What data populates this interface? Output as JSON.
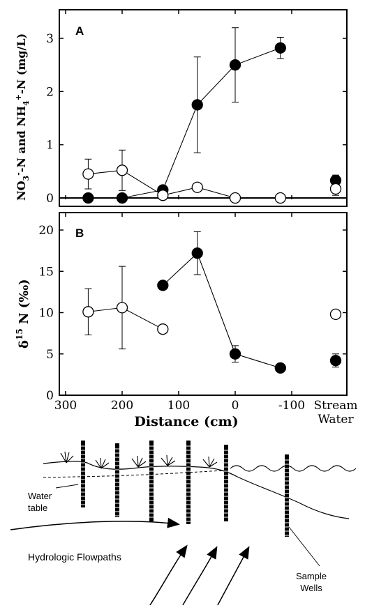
{
  "chart_data": [
    {
      "type": "scatter",
      "panel_label": "A",
      "ylabel_parts": {
        "a": "NO",
        "a_sub": "3",
        "a_sup": "-",
        "b": "-N and NH",
        "b_sub": "4",
        "b_sup": "+",
        "c": "-N (mg/L)"
      },
      "ylim": [
        0,
        3.4
      ],
      "yticks": [
        "0",
        "1",
        "2",
        "3"
      ],
      "ytick_values": [
        0,
        1,
        2,
        3
      ],
      "series": [
        {
          "marker": "filled",
          "connected": true,
          "points": [
            {
              "x": 260,
              "y": 0.0
            },
            {
              "x": 200,
              "y": 0.0
            },
            {
              "x": 128,
              "y": 0.15,
              "err": 0.05
            },
            {
              "x": 67,
              "y": 1.75,
              "err": 0.9
            },
            {
              "x": 0,
              "y": 2.5,
              "err": 0.7
            },
            {
              "x": -80,
              "y": 2.82,
              "err": 0.2
            }
          ],
          "stream": {
            "y": 0.33,
            "err": 0.1
          }
        },
        {
          "marker": "open",
          "connected": true,
          "points": [
            {
              "x": 260,
              "y": 0.45,
              "err": 0.28
            },
            {
              "x": 200,
              "y": 0.52,
              "err": 0.38
            },
            {
              "x": 128,
              "y": 0.05
            },
            {
              "x": 67,
              "y": 0.2
            },
            {
              "x": 0,
              "y": 0.0
            },
            {
              "x": -80,
              "y": 0.0
            }
          ],
          "stream": {
            "y": 0.17,
            "err": 0.12
          }
        }
      ]
    },
    {
      "type": "scatter",
      "panel_label": "B",
      "ylabel_parts": {
        "delta": "δ",
        "sup": "15",
        "rest": "N (‰)"
      },
      "ylim": [
        0,
        21
      ],
      "yticks": [
        "0",
        "5",
        "10",
        "15",
        "20"
      ],
      "ytick_values": [
        0,
        5,
        10,
        15,
        20
      ],
      "xlabel": "Distance (cm)",
      "xticks": [
        "300",
        "200",
        "100",
        "0",
        "-100"
      ],
      "xtick_values": [
        300,
        200,
        100,
        0,
        -100
      ],
      "xlim": [
        300,
        -160
      ],
      "extra_category": [
        "Stream",
        "Water"
      ],
      "series": [
        {
          "marker": "filled",
          "connected": true,
          "points": [
            {
              "x": 128,
              "y": 13.3
            },
            {
              "x": 67,
              "y": 17.2,
              "err": 2.6
            },
            {
              "x": 0,
              "y": 5.0,
              "err": 1.0
            },
            {
              "x": -80,
              "y": 3.3
            }
          ],
          "stream": {
            "y": 4.2,
            "err": 0.8
          }
        },
        {
          "marker": "open",
          "connected": true,
          "points": [
            {
              "x": 260,
              "y": 10.1,
              "err": 2.8
            },
            {
              "x": 200,
              "y": 10.6,
              "err": 5.0
            },
            {
              "x": 128,
              "y": 8.0
            }
          ],
          "stream": {
            "y": 9.8
          }
        }
      ]
    }
  ],
  "diagram": {
    "labels": {
      "water_table": [
        "Water",
        "table"
      ],
      "flowpaths": "Hydrologic Flowpaths",
      "sample_wells": [
        "Sample",
        "Wells"
      ]
    }
  }
}
